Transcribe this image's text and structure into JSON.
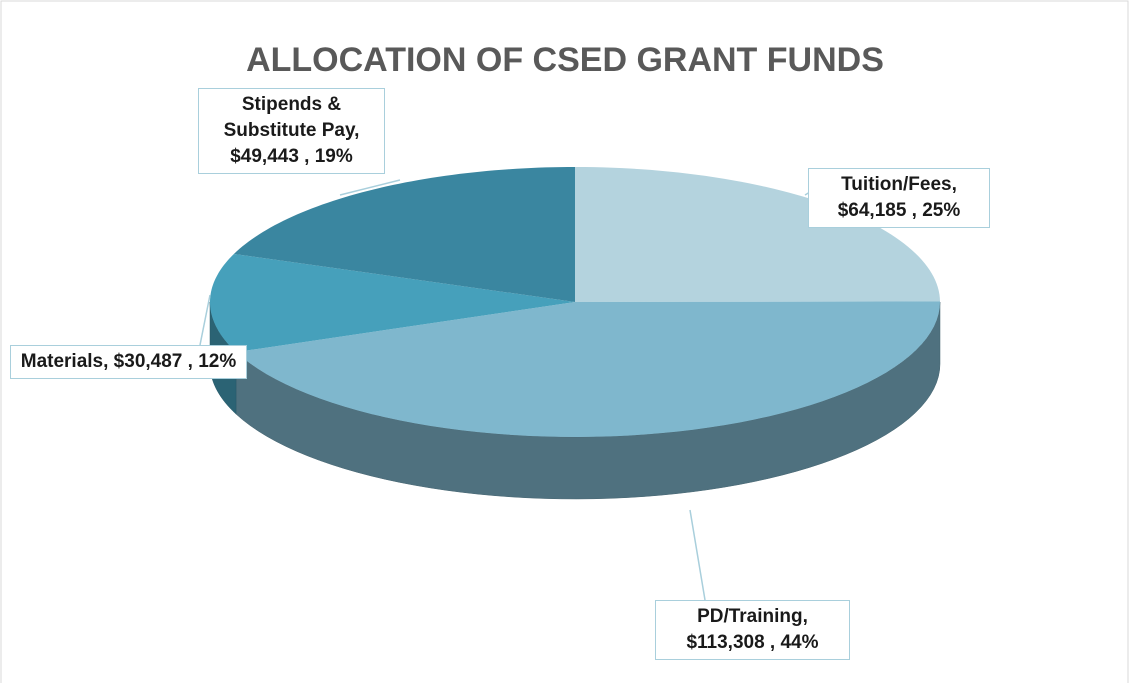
{
  "chart_data": {
    "type": "pie3d",
    "title": "ALLOCATION OF CSED GRANT FUNDS",
    "values": [
      64185,
      113308,
      30487,
      49443
    ],
    "value_labels": [
      "Tuition/Fees, $64,185 , 25%",
      "PD/Training, $113,308 , 44%",
      "Materials, $30,487 , 12%",
      "Stipends & Substitute Pay, $49,443 , 19%"
    ],
    "colors": [
      "#b4d3de",
      "#7fb7cd",
      "#46a0bb",
      "#3a86a0"
    ]
  }
}
